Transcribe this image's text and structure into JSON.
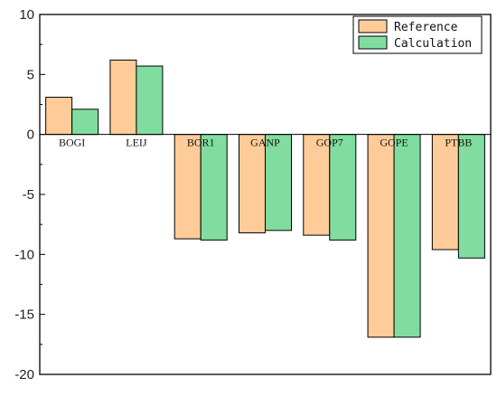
{
  "chart_data": {
    "type": "bar",
    "categories": [
      "BOGI",
      "LEIJ",
      "BOR1",
      "GANP",
      "GOP7",
      "GOPE",
      "PTBB"
    ],
    "series": [
      {
        "name": "Reference",
        "values": [
          3.1,
          6.2,
          -8.7,
          -8.2,
          -8.4,
          -16.9,
          -9.6
        ],
        "color": "#FFCC99"
      },
      {
        "name": "Calculation",
        "values": [
          2.1,
          5.7,
          -8.8,
          -8.0,
          -8.8,
          -16.9,
          -10.3
        ],
        "color": "#80DD9F"
      }
    ],
    "ylim": [
      -20,
      10
    ],
    "yticks": [
      -20,
      -15,
      -10,
      -5,
      0,
      5,
      10
    ],
    "xlabel": "",
    "ylabel": "",
    "grid": false,
    "legend_position": "top-right"
  }
}
